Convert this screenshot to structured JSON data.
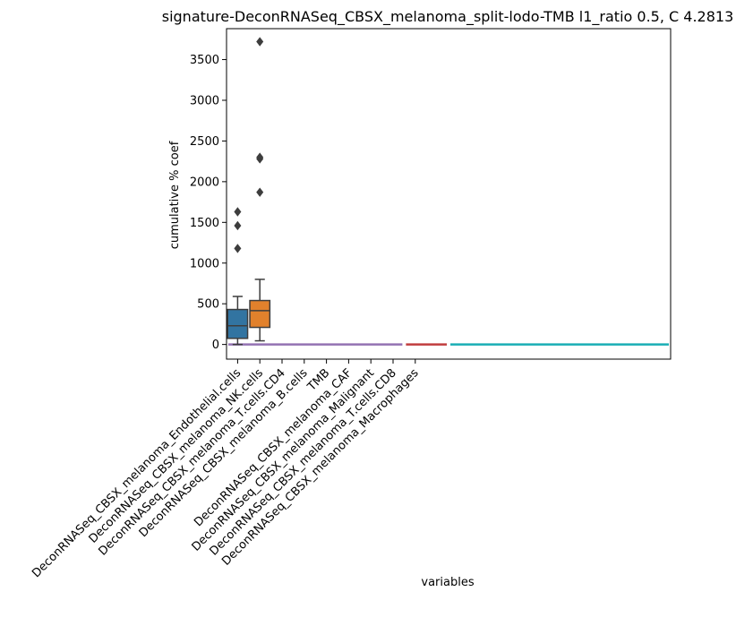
{
  "chart_data": {
    "type": "box",
    "title": "signature-DeconRNASeq_CBSX_melanoma_split-lodo-TMB l1_ratio 0.5, C 4.2813",
    "xlabel": "variables",
    "ylabel": "cumulative % coef",
    "ylim": [
      -180,
      3880
    ],
    "yticks": [
      0,
      500,
      1000,
      1500,
      2000,
      2500,
      3000,
      3500
    ],
    "categories": [
      "DeconRNASeq_CBSX_melanoma_Endothelial.cells",
      "DeconRNASeq_CBSX_melanoma_NK.cells",
      "DeconRNASeq_CBSX_melanoma_T.cells.CD4",
      "DeconRNASeq_CBSX_melanoma_B.cells",
      "TMB",
      "DeconRNASeq_CBSX_melanoma_CAF",
      "DeconRNASeq_CBSX_melanoma_Malignant",
      "DeconRNASeq_CBSX_melanoma_T.cells.CD8",
      "DeconRNASeq_CBSX_melanoma_Macrophages"
    ],
    "boxes": [
      {
        "category": "DeconRNASeq_CBSX_melanoma_Endothelial.cells",
        "color": "#3274a1",
        "q1": 75,
        "median": 230,
        "q3": 430,
        "whisker_low": 0,
        "whisker_high": 590,
        "outliers": [
          1180,
          1460,
          1630
        ]
      },
      {
        "category": "DeconRNASeq_CBSX_melanoma_NK.cells",
        "color": "#e1812c",
        "q1": 210,
        "median": 415,
        "q3": 540,
        "whisker_low": 45,
        "whisker_high": 800,
        "outliers": [
          1870,
          2280,
          2300,
          3720
        ]
      }
    ],
    "zero_lines": [
      {
        "from_index": -0.5,
        "to_index": 7.5,
        "value": 0,
        "color": "#9372b2"
      },
      {
        "from_index": 7.5,
        "to_index": 9.5,
        "value": 0,
        "color": "#c03d3e"
      },
      {
        "from_index": 9.5,
        "to_index": 19.5,
        "value": 0,
        "color": "#1aaeb4"
      }
    ],
    "x_index_range": [
      -0.5,
      19.5
    ],
    "grid": false,
    "legend": "none"
  }
}
